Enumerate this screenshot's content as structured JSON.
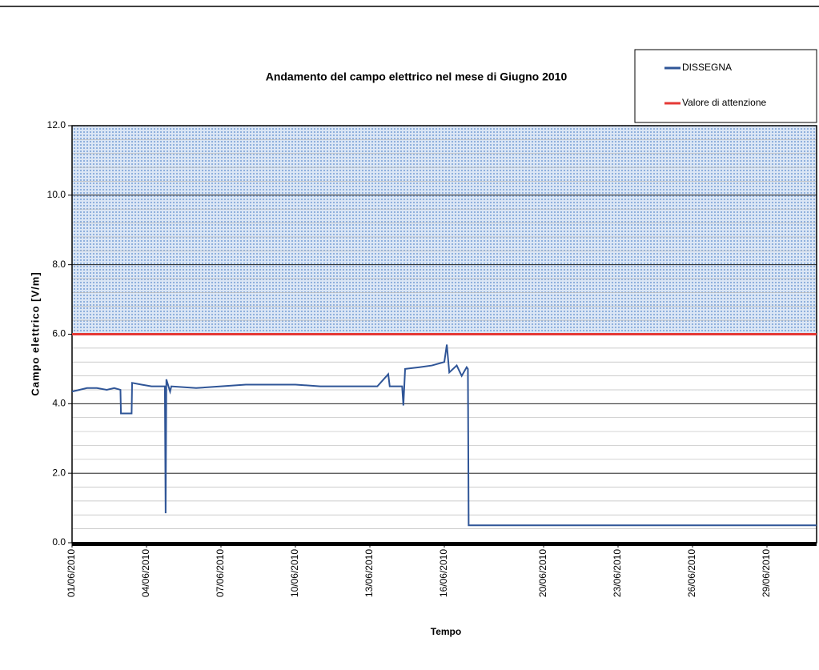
{
  "chart_data": {
    "type": "line",
    "title": "Andamento del campo elettrico nel mese di Giugno 2010",
    "xlabel": "Tempo",
    "ylabel": "Campo elettrico [V/m]",
    "xlim": [
      1,
      31
    ],
    "xticks": [
      {
        "value": 1,
        "label": "01/06/2010"
      },
      {
        "value": 4,
        "label": "04/06/2010"
      },
      {
        "value": 7,
        "label": "07/06/2010"
      },
      {
        "value": 10,
        "label": "10/06/2010"
      },
      {
        "value": 13,
        "label": "13/06/2010"
      },
      {
        "value": 16,
        "label": "16/06/2010"
      },
      {
        "value": 20,
        "label": "20/06/2010"
      },
      {
        "value": 23,
        "label": "23/06/2010"
      },
      {
        "value": 26,
        "label": "26/06/2010"
      },
      {
        "value": 29,
        "label": "29/06/2010"
      }
    ],
    "ylim": [
      0,
      12
    ],
    "yticks": [
      {
        "value": 0,
        "label": "0.0"
      },
      {
        "value": 2,
        "label": "2.0"
      },
      {
        "value": 4,
        "label": "4.0"
      },
      {
        "value": 6,
        "label": "6.0"
      },
      {
        "value": 8,
        "label": "8.0"
      },
      {
        "value": 10,
        "label": "10.0"
      },
      {
        "value": 12,
        "label": "12.0"
      }
    ],
    "grid": true,
    "legend": "top-right",
    "series": [
      {
        "name": "DISSEGNA",
        "color": "#2f5597",
        "x": [
          1.0,
          1.3,
          1.6,
          2.0,
          2.4,
          2.7,
          2.95,
          2.97,
          3.4,
          3.42,
          3.8,
          4.2,
          4.74,
          4.77,
          4.8,
          4.95,
          5.0,
          6.0,
          7.0,
          8.0,
          9.0,
          10.0,
          11.0,
          12.0,
          12.5,
          13.3,
          13.74,
          13.8,
          14.3,
          14.35,
          14.42,
          15.0,
          15.5,
          16.0,
          16.1,
          16.2,
          16.5,
          16.7,
          16.9,
          16.95,
          16.98,
          31.0
        ],
        "values": [
          4.35,
          4.4,
          4.45,
          4.45,
          4.4,
          4.45,
          4.4,
          3.72,
          3.72,
          4.6,
          4.55,
          4.5,
          4.5,
          0.85,
          4.7,
          4.35,
          4.5,
          4.45,
          4.5,
          4.55,
          4.55,
          4.55,
          4.5,
          4.5,
          4.5,
          4.5,
          4.85,
          4.5,
          4.5,
          3.95,
          5.0,
          5.05,
          5.1,
          5.2,
          5.7,
          4.9,
          5.1,
          4.8,
          5.05,
          5.0,
          0.5,
          0.5
        ]
      },
      {
        "name": "Valore di attenzione",
        "color": "#e53935",
        "x": [
          1,
          31
        ],
        "values": [
          6,
          6
        ]
      }
    ]
  }
}
